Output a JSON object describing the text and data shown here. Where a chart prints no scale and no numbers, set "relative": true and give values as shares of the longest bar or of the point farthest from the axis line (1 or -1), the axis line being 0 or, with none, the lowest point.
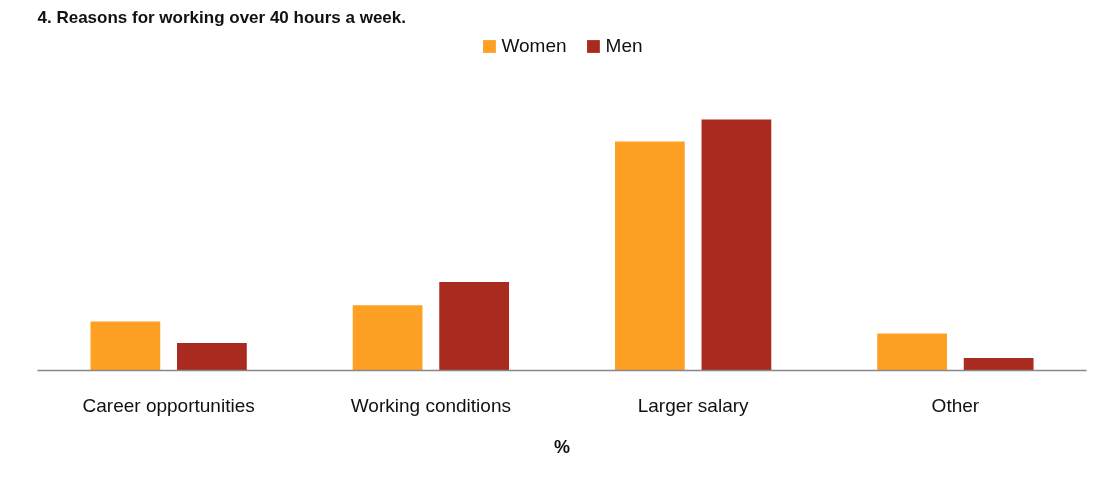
{
  "chart_data": {
    "type": "bar",
    "title": "4. Reasons for working over 40 hours a week.",
    "xlabel": "%",
    "categories": [
      "Career opportunities",
      "Working conditions",
      "Larger salary",
      "Other"
    ],
    "series": [
      {
        "name": "Women",
        "color": "#fea024",
        "values": [
          0.195,
          0.26,
          0.912,
          0.147
        ]
      },
      {
        "name": "Men",
        "color": "#a92a1e",
        "values": [
          0.11,
          0.352,
          1,
          0.05
        ]
      }
    ],
    "relative": true,
    "legend": "top"
  }
}
